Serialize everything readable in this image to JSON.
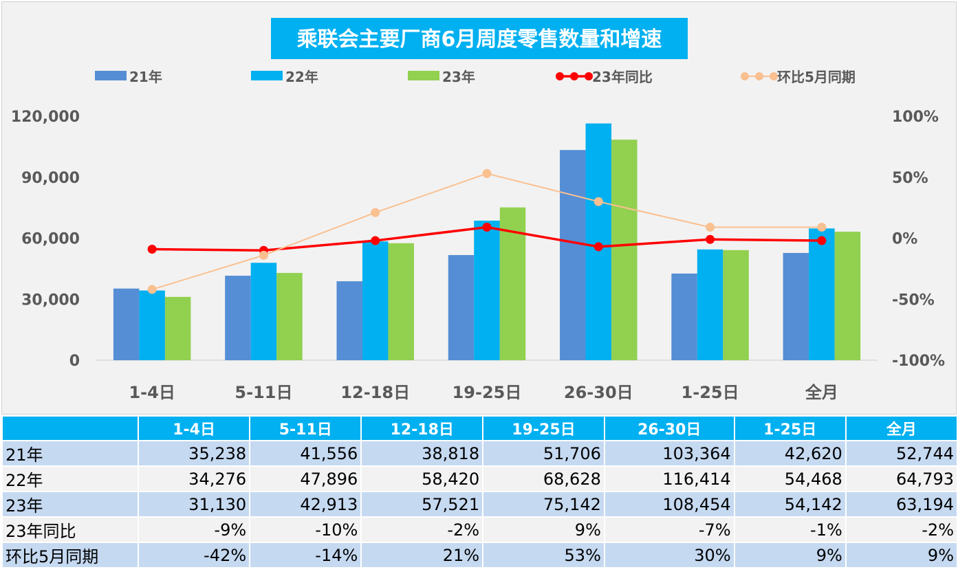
{
  "chart_data": {
    "type": "bar",
    "title": "乘联会主要厂商6月周度零售数量和增速",
    "categories": [
      "1-4日",
      "5-11日",
      "12-18日",
      "19-25日",
      "26-30日",
      "1-25日",
      "全月"
    ],
    "series": [
      {
        "name": "21年",
        "type": "bar",
        "axis": "left",
        "color": "#558ed5",
        "values": [
          35238,
          41556,
          38818,
          51706,
          103364,
          42620,
          52744
        ]
      },
      {
        "name": "22年",
        "type": "bar",
        "axis": "left",
        "color": "#00b0f0",
        "values": [
          34276,
          47896,
          58420,
          68628,
          116414,
          54468,
          64793
        ]
      },
      {
        "name": "23年",
        "type": "bar",
        "axis": "left",
        "color": "#92d050",
        "values": [
          31130,
          42913,
          57521,
          75142,
          108454,
          54142,
          63194
        ]
      },
      {
        "name": "23年同比",
        "type": "line",
        "axis": "right",
        "color": "#ff0000",
        "values": [
          -9,
          -10,
          -2,
          9,
          -7,
          -1,
          -2
        ]
      },
      {
        "name": "环比5月同期",
        "type": "line",
        "axis": "right",
        "color": "#fac090",
        "values": [
          -42,
          -14,
          21,
          53,
          30,
          9,
          9
        ]
      }
    ],
    "left_axis": {
      "ylim": [
        0,
        120000
      ],
      "ticks": [
        "0",
        "30,000",
        "60,000",
        "90,000",
        "120,000"
      ]
    },
    "right_axis": {
      "ylim": [
        -100,
        100
      ],
      "ticks": [
        "-100%",
        "-50%",
        "0%",
        "50%",
        "100%"
      ]
    },
    "legend": "top",
    "grid": false
  },
  "table": {
    "header": [
      "",
      "1-4日",
      "5-11日",
      "12-18日",
      "19-25日",
      "26-30日",
      "1-25日",
      "全月"
    ],
    "rows": [
      [
        "21年",
        "35,238",
        "41,556",
        "38,818",
        "51,706",
        "103,364",
        "42,620",
        "52,744"
      ],
      [
        "22年",
        "34,276",
        "47,896",
        "58,420",
        "68,628",
        "116,414",
        "54,468",
        "64,793"
      ],
      [
        "23年",
        "31,130",
        "42,913",
        "57,521",
        "75,142",
        "108,454",
        "54,142",
        "63,194"
      ],
      [
        "23年同比",
        "-9%",
        "-10%",
        "-2%",
        "9%",
        "-7%",
        "-1%",
        "-2%"
      ],
      [
        "环比5月同期",
        "-42%",
        "-14%",
        "21%",
        "53%",
        "30%",
        "9%",
        "9%"
      ]
    ]
  }
}
